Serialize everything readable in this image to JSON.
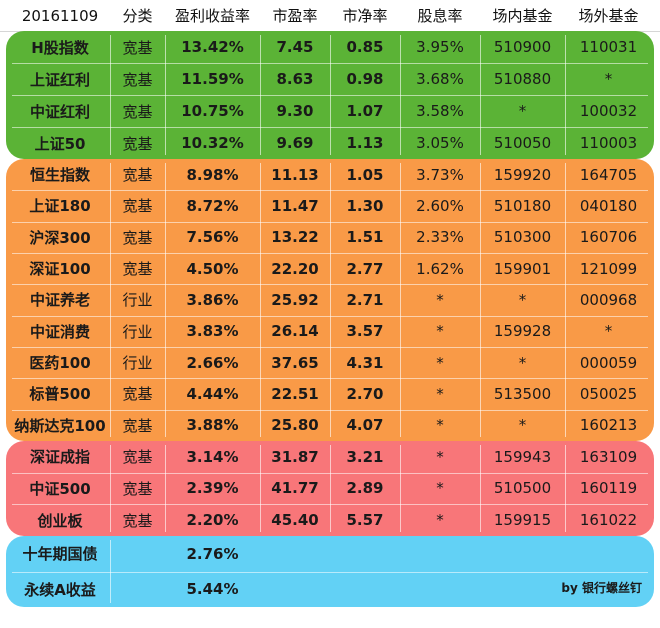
{
  "header": [
    "20161109",
    "分类",
    "盈利收益率",
    "市盈率",
    "市净率",
    "股息率",
    "场内基金",
    "场外基金"
  ],
  "groups": [
    {
      "color": "#5bb336",
      "rows": [
        [
          "H股指数",
          "宽基",
          "13.42%",
          "7.45",
          "0.85",
          "3.95%",
          "510900",
          "110031"
        ],
        [
          "上证红利",
          "宽基",
          "11.59%",
          "8.63",
          "0.98",
          "3.68%",
          "510880",
          "*"
        ],
        [
          "中证红利",
          "宽基",
          "10.75%",
          "9.30",
          "1.07",
          "3.58%",
          "*",
          "100032"
        ],
        [
          "上证50",
          "宽基",
          "10.32%",
          "9.69",
          "1.13",
          "3.05%",
          "510050",
          "110003"
        ]
      ]
    },
    {
      "color": "#f99a47",
      "rows": [
        [
          "恒生指数",
          "宽基",
          "8.98%",
          "11.13",
          "1.05",
          "3.73%",
          "159920",
          "164705"
        ],
        [
          "上证180",
          "宽基",
          "8.72%",
          "11.47",
          "1.30",
          "2.60%",
          "510180",
          "040180"
        ],
        [
          "沪深300",
          "宽基",
          "7.56%",
          "13.22",
          "1.51",
          "2.33%",
          "510300",
          "160706"
        ],
        [
          "深证100",
          "宽基",
          "4.50%",
          "22.20",
          "2.77",
          "1.62%",
          "159901",
          "121099"
        ],
        [
          "中证养老",
          "行业",
          "3.86%",
          "25.92",
          "2.71",
          "*",
          "*",
          "000968"
        ],
        [
          "中证消费",
          "行业",
          "3.83%",
          "26.14",
          "3.57",
          "*",
          "159928",
          "*"
        ],
        [
          "医药100",
          "行业",
          "2.66%",
          "37.65",
          "4.31",
          "*",
          "*",
          "000059"
        ],
        [
          "标普500",
          "宽基",
          "4.44%",
          "22.51",
          "2.70",
          "*",
          "513500",
          "050025"
        ],
        [
          "纳斯达克100",
          "宽基",
          "3.88%",
          "25.80",
          "4.07",
          "*",
          "*",
          "160213"
        ]
      ]
    },
    {
      "color": "#f87679",
      "rows": [
        [
          "深证成指",
          "宽基",
          "3.14%",
          "31.87",
          "3.21",
          "*",
          "159943",
          "163109"
        ],
        [
          "中证500",
          "宽基",
          "2.39%",
          "41.77",
          "2.89",
          "*",
          "510500",
          "160119"
        ],
        [
          "创业板",
          "宽基",
          "2.20%",
          "45.40",
          "5.57",
          "*",
          "159915",
          "161022"
        ]
      ]
    },
    {
      "color": "#62d1f5",
      "rows": [
        [
          "十年期国债",
          "",
          "2.76%",
          "",
          "",
          "",
          "",
          ""
        ],
        [
          "永续A收益",
          "",
          "5.44%",
          "",
          "",
          "",
          "",
          ""
        ]
      ]
    }
  ],
  "credit": "by 银行螺丝钉"
}
